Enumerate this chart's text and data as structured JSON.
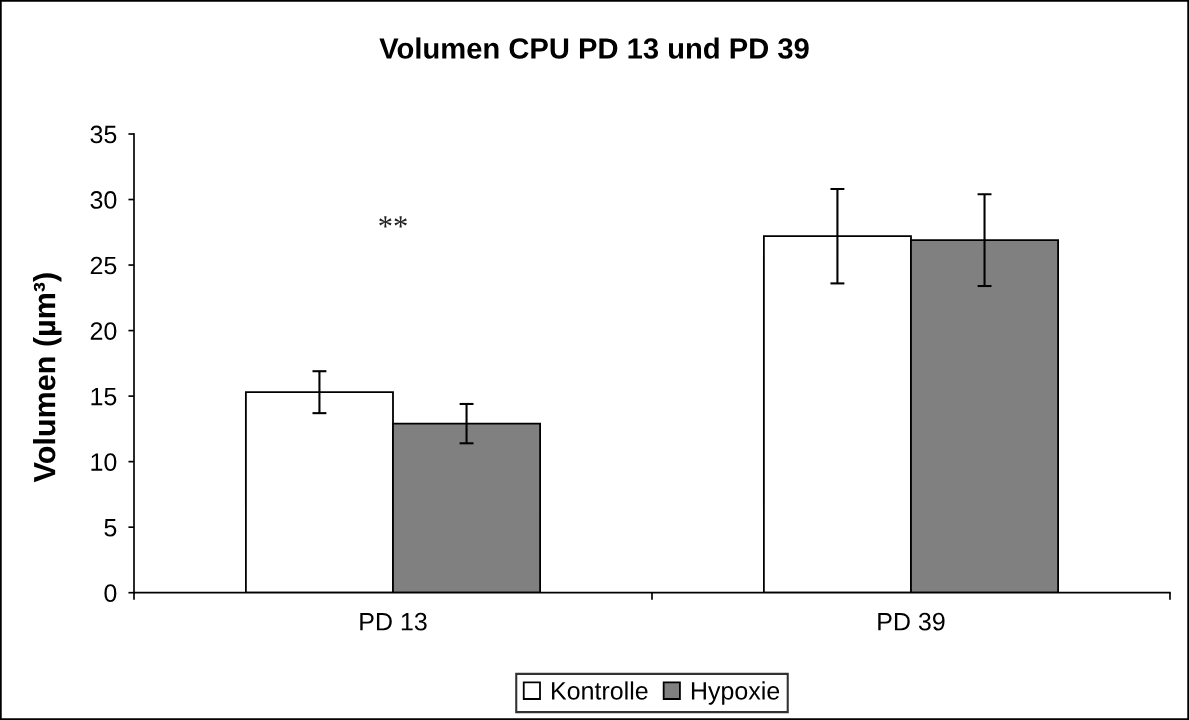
{
  "chart_data": {
    "type": "bar",
    "title": "Volumen CPU PD 13 und PD 39",
    "ylabel": "Volumen (µm³)",
    "categories": [
      "PD 13",
      "PD 39"
    ],
    "series": [
      {
        "name": "Kontrolle",
        "color": "#ffffff",
        "values": [
          15.3,
          27.2
        ],
        "errors": [
          1.6,
          3.6
        ]
      },
      {
        "name": "Hypoxie",
        "color": "#808080",
        "values": [
          12.9,
          26.9
        ],
        "errors": [
          1.5,
          3.5
        ]
      }
    ],
    "ylim": [
      0,
      35
    ],
    "yticks": [
      0,
      5,
      10,
      15,
      20,
      25,
      30,
      35
    ],
    "grid": false,
    "legend": "bottom",
    "annotations": [
      "**"
    ]
  }
}
